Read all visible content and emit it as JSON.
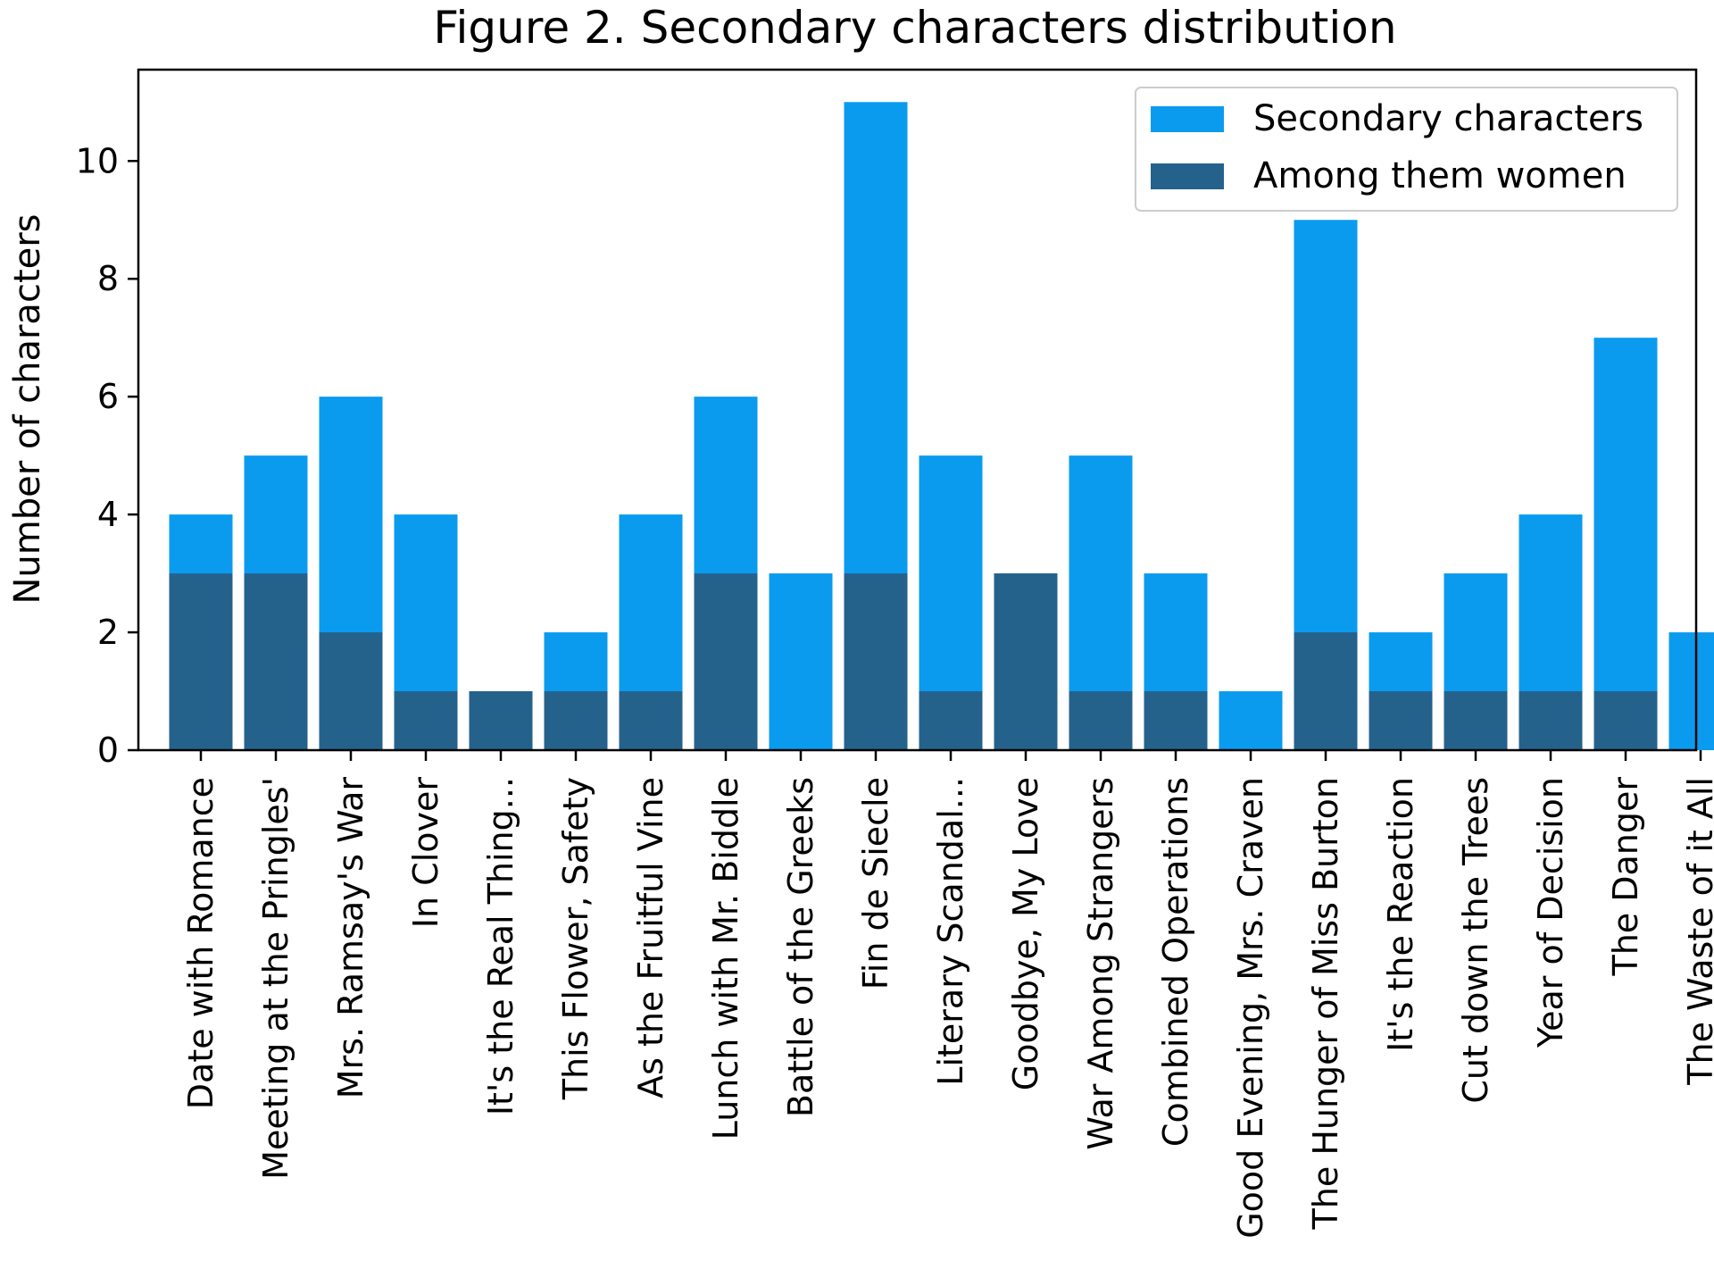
{
  "chart_data": {
    "type": "bar",
    "title": "Figure 2. Secondary characters distribution",
    "xlabel": "",
    "ylabel": "Number of characters",
    "ylim": [
      0,
      11.55
    ],
    "yticks": [
      0,
      2,
      4,
      6,
      8,
      10
    ],
    "grid": false,
    "legend_position": "top-right",
    "categories": [
      "Date with Romance",
      "Meeting at the Pringles'",
      "Mrs. Ramsay's War",
      "In Clover",
      "It's the Real Thing...",
      "This Flower, Safety",
      "As the Fruitful Vine",
      "Lunch with Mr. Biddle",
      "Battle of the Greeks",
      "Fin de Siecle",
      "Literary Scandal...",
      "Goodbye, My Love",
      "War Among Strangers",
      "Combined Operations",
      "Good Evening, Mrs. Craven",
      "The Hunger of Miss Burton",
      "It's the Reaction",
      "Cut down the Trees",
      "Year of Decision",
      "The Danger",
      "The Waste of it All"
    ],
    "series": [
      {
        "name": "Secondary characters",
        "color": "#0a9bef",
        "values": [
          4,
          5,
          6,
          4,
          1,
          2,
          4,
          6,
          3,
          11,
          5,
          3,
          5,
          3,
          1,
          9,
          2,
          3,
          4,
          7,
          2
        ]
      },
      {
        "name": "Among them women",
        "color": "#24628c",
        "values": [
          3,
          3,
          2,
          1,
          1,
          1,
          1,
          3,
          0,
          3,
          1,
          3,
          1,
          1,
          0,
          2,
          1,
          1,
          1,
          1,
          0
        ]
      }
    ]
  }
}
